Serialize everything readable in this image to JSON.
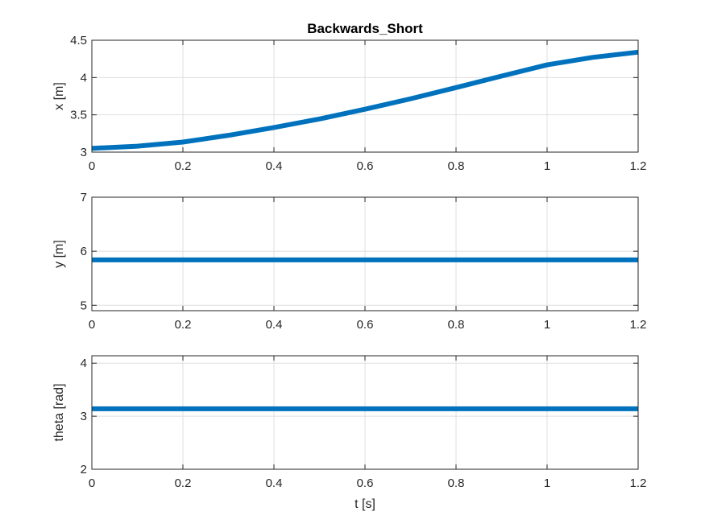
{
  "chart_data": [
    {
      "type": "line",
      "title": "Backwards_Short",
      "xlabel": "",
      "ylabel": "x [m]",
      "xlim": [
        0,
        1.2
      ],
      "ylim": [
        3,
        4.5
      ],
      "xticks": [
        "0",
        "0.2",
        "0.4",
        "0.6",
        "0.8",
        "1",
        "1.2"
      ],
      "yticks": [
        "3",
        "3.5",
        "4",
        "4.5"
      ],
      "grid": true,
      "series": [
        {
          "color": "#0072BD",
          "x": [
            0,
            0.1,
            0.2,
            0.3,
            0.4,
            0.5,
            0.6,
            0.7,
            0.8,
            0.9,
            1.0,
            1.1,
            1.2
          ],
          "y": [
            3.05,
            3.08,
            3.135,
            3.225,
            3.33,
            3.445,
            3.575,
            3.715,
            3.865,
            4.02,
            4.17,
            4.27,
            4.34
          ]
        }
      ]
    },
    {
      "type": "line",
      "title": "",
      "xlabel": "",
      "ylabel": "y [m]",
      "xlim": [
        0,
        1.2
      ],
      "ylim": [
        4.9,
        7
      ],
      "xticks": [
        "0",
        "0.2",
        "0.4",
        "0.6",
        "0.8",
        "1",
        "1.2"
      ],
      "yticks": [
        "5",
        "6",
        "7"
      ],
      "grid": true,
      "series": [
        {
          "color": "#0072BD",
          "x": [
            0,
            1.2
          ],
          "y": [
            5.84,
            5.84
          ]
        }
      ]
    },
    {
      "type": "line",
      "title": "",
      "xlabel": "t [s]",
      "ylabel": "theta [rad]",
      "xlim": [
        0,
        1.2
      ],
      "ylim": [
        2,
        4.14
      ],
      "xticks": [
        "0",
        "0.2",
        "0.4",
        "0.6",
        "0.8",
        "1",
        "1.2"
      ],
      "yticks": [
        "2",
        "3",
        "4"
      ],
      "grid": true,
      "series": [
        {
          "color": "#0072BD",
          "x": [
            0,
            1.2
          ],
          "y": [
            3.14,
            3.14
          ]
        }
      ]
    }
  ]
}
